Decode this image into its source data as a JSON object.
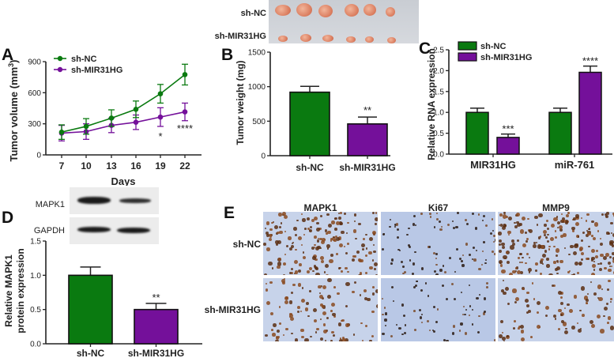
{
  "panels": {
    "A": {
      "letter": "A"
    },
    "B": {
      "letter": "B",
      "photo_row_labels": [
        "sh-NC",
        "sh-MIR31HG"
      ]
    },
    "C": {
      "letter": "C"
    },
    "D": {
      "letter": "D",
      "blot_labels": [
        "MAPK1",
        "GAPDH"
      ]
    },
    "E": {
      "letter": "E",
      "column_labels": [
        "MAPK1",
        "Ki67",
        "MMP9"
      ],
      "row_labels": [
        "sh-NC",
        "sh-MIR31HG"
      ]
    }
  },
  "colors": {
    "sh_NC": "#0a7a10",
    "sh_MIR31HG": "#74109a"
  },
  "chart_data": [
    {
      "id": "A",
      "type": "line",
      "title": "",
      "xlabel": "Days",
      "ylabel": "Tumor volume (mm3)",
      "x": [
        7,
        10,
        13,
        16,
        19,
        22
      ],
      "ylim": [
        0,
        900
      ],
      "yticks": [
        0,
        300,
        600,
        900
      ],
      "legend_position": "top-left",
      "series": [
        {
          "name": "sh-NC",
          "values": [
            220,
            275,
            355,
            440,
            590,
            775
          ],
          "errors": [
            70,
            75,
            80,
            80,
            90,
            100
          ]
        },
        {
          "name": "sh-MIR31HG",
          "values": [
            210,
            225,
            285,
            315,
            365,
            415
          ],
          "errors": [
            75,
            75,
            70,
            70,
            90,
            85
          ]
        }
      ],
      "annotations": [
        {
          "x": 19,
          "text": "*"
        },
        {
          "x": 22,
          "text": "****"
        }
      ]
    },
    {
      "id": "B",
      "type": "bar",
      "title": "",
      "xlabel": "",
      "ylabel": "Tumor weight (mg)",
      "categories": [
        "sh-NC",
        "sh-MIR31HG"
      ],
      "values": [
        920,
        460
      ],
      "errors": [
        85,
        100
      ],
      "ylim": [
        0,
        1500
      ],
      "yticks": [
        0,
        500,
        1000,
        1500
      ],
      "annotations": [
        {
          "category": "sh-MIR31HG",
          "text": "**"
        }
      ]
    },
    {
      "id": "C",
      "type": "bar",
      "title": "",
      "xlabel": "",
      "ylabel": "Relative RNA expression",
      "categories": [
        "MIR31HG",
        "miR-761"
      ],
      "series": [
        {
          "name": "sh-NC",
          "values": [
            1.0,
            1.0
          ],
          "errors": [
            0.1,
            0.1
          ]
        },
        {
          "name": "sh-MIR31HG",
          "values": [
            0.4,
            1.96
          ],
          "errors": [
            0.08,
            0.15
          ]
        }
      ],
      "ylim": [
        0,
        2.5
      ],
      "yticks": [
        "0.0",
        "0.5",
        "1.0",
        "1.5",
        "2.0",
        "2.5"
      ],
      "legend_position": "top-left",
      "annotations": [
        {
          "category": "MIR31HG",
          "text": "***"
        },
        {
          "category": "miR-761",
          "text": "****"
        }
      ]
    },
    {
      "id": "D",
      "type": "bar",
      "title": "",
      "xlabel": "",
      "ylabel": "Relative MAPK1 protein expression",
      "ylabel_lines": [
        "Relative MAPK1",
        "protein expression"
      ],
      "categories": [
        "sh-NC",
        "sh-MIR31HG"
      ],
      "values": [
        1.0,
        0.5
      ],
      "errors": [
        0.12,
        0.09
      ],
      "ylim": [
        0,
        1.5
      ],
      "yticks": [
        "0.0",
        "0.5",
        "1.0",
        "1.5"
      ],
      "annotations": [
        {
          "category": "sh-MIR31HG",
          "text": "**"
        }
      ]
    }
  ]
}
